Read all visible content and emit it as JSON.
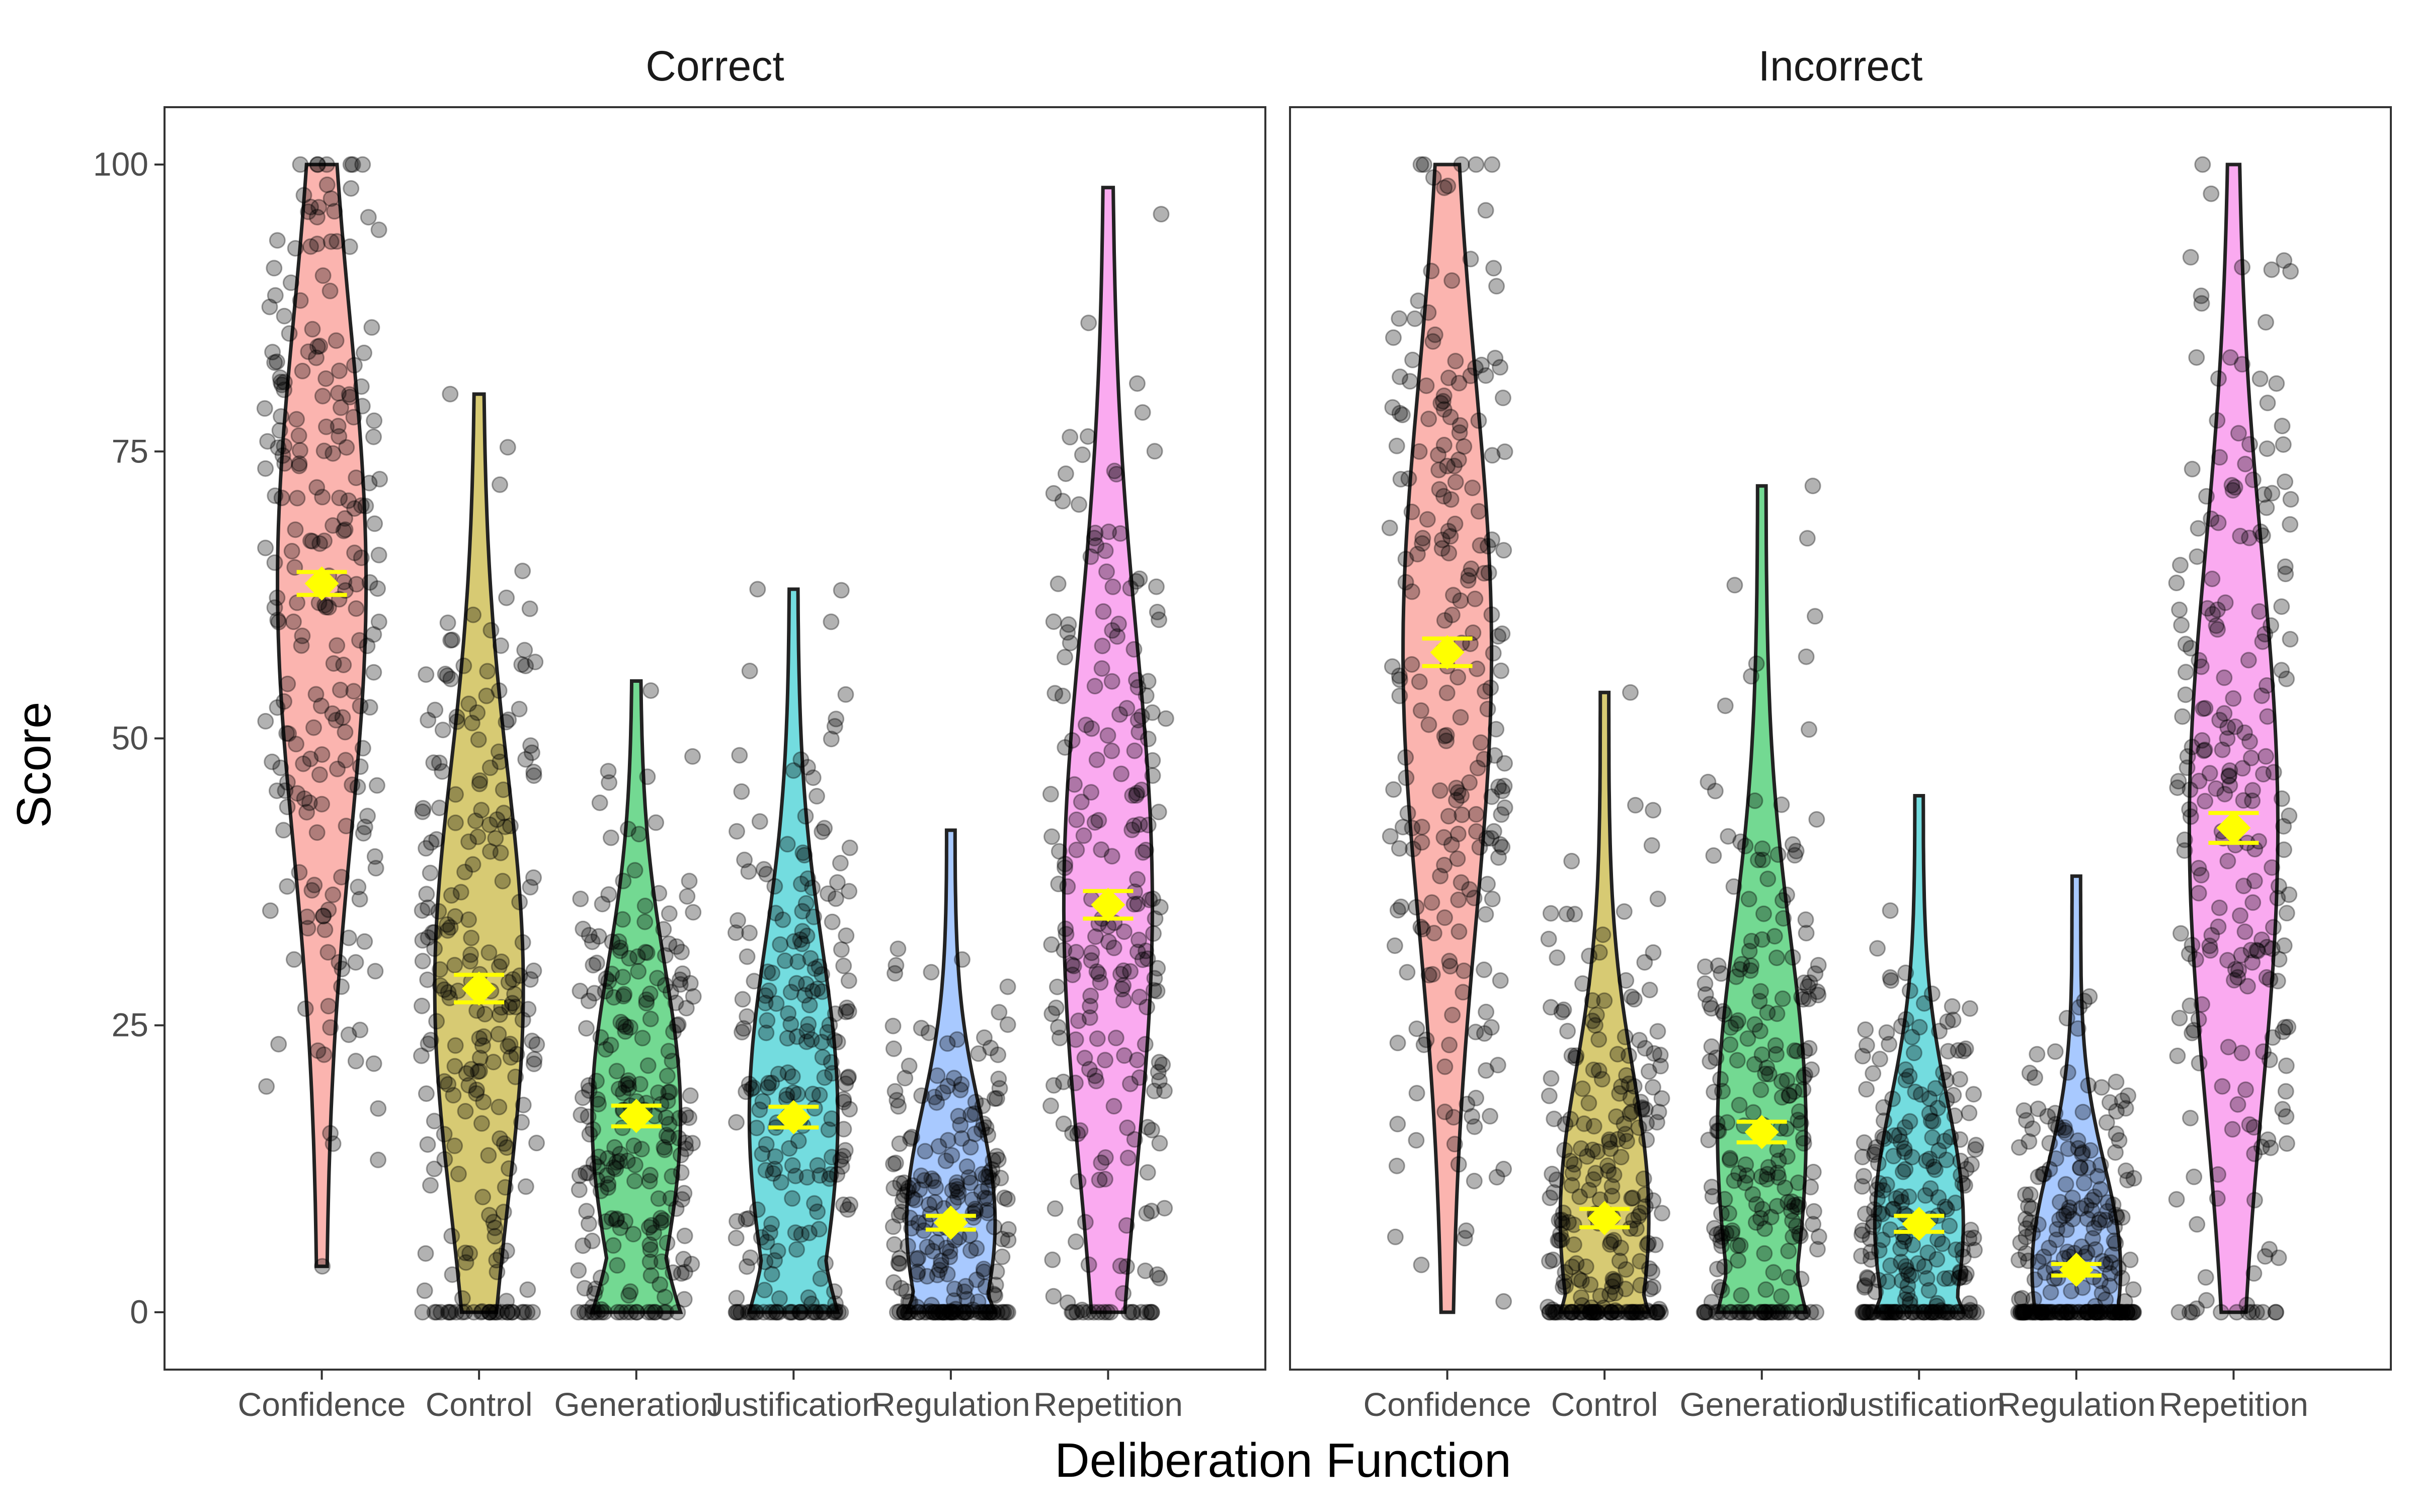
{
  "chart_data": {
    "type": "violin",
    "xlabel": "Deliberation Function",
    "ylabel": "Score",
    "ylim": [
      -5,
      105
    ],
    "yticks": [
      "0",
      "25",
      "50",
      "75",
      "100"
    ],
    "ytick_values": [
      0,
      25,
      50,
      75,
      100
    ],
    "categories": [
      "Confidence",
      "Control",
      "Generation",
      "Justification",
      "Regulation",
      "Repetition"
    ],
    "colors": [
      "#F8766D",
      "#B79F00",
      "#00BA38",
      "#00BFC4",
      "#619CFF",
      "#F564E3"
    ],
    "point_color": "#000000",
    "mean_marker_color": "#FFFF00",
    "grid": false,
    "legend": "none",
    "panels": [
      {
        "title": "Correct",
        "groups": [
          {
            "category": "Confidence",
            "mean": 63.5,
            "se": 1.0,
            "min": 4,
            "max": 100
          },
          {
            "category": "Control",
            "mean": 28.2,
            "se": 1.2,
            "min": 0,
            "max": 80
          },
          {
            "category": "Generation",
            "mean": 17.1,
            "se": 0.9,
            "min": 0,
            "max": 55
          },
          {
            "category": "Justification",
            "mean": 17.0,
            "se": 0.9,
            "min": 0,
            "max": 63
          },
          {
            "category": "Regulation",
            "mean": 7.8,
            "se": 0.6,
            "min": 0,
            "max": 42
          },
          {
            "category": "Repetition",
            "mean": 35.5,
            "se": 1.2,
            "min": 0,
            "max": 98
          }
        ]
      },
      {
        "title": "Incorrect",
        "groups": [
          {
            "category": "Confidence",
            "mean": 57.5,
            "se": 1.2,
            "min": 0,
            "max": 100
          },
          {
            "category": "Control",
            "mean": 8.2,
            "se": 0.8,
            "min": 0,
            "max": 54
          },
          {
            "category": "Generation",
            "mean": 15.7,
            "se": 0.9,
            "min": 0,
            "max": 72
          },
          {
            "category": "Justification",
            "mean": 7.7,
            "se": 0.7,
            "min": 0,
            "max": 45
          },
          {
            "category": "Regulation",
            "mean": 3.7,
            "se": 0.5,
            "min": 0,
            "max": 38
          },
          {
            "category": "Repetition",
            "mean": 42.2,
            "se": 1.3,
            "min": 0,
            "max": 100
          }
        ]
      }
    ]
  }
}
